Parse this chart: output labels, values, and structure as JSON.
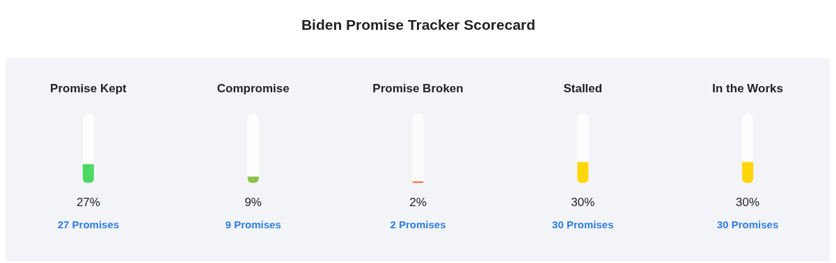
{
  "chart_data": {
    "type": "bar",
    "title": "Biden Promise Tracker Scorecard",
    "categories": [
      "Promise Kept",
      "Compromise",
      "Promise Broken",
      "Stalled",
      "In the Works"
    ],
    "values": [
      27,
      9,
      2,
      30,
      30
    ],
    "colors": [
      "#4cd964",
      "#8bc34a",
      "#e8642c",
      "#ffd60a",
      "#ffd60a"
    ],
    "value_labels": [
      "27%",
      "9%",
      "2%",
      "30%",
      "30%"
    ],
    "annotations": [
      "27 Promises",
      "9 Promises",
      "2 Promises",
      "30 Promises",
      "30 Promises"
    ],
    "ylim": [
      0,
      100
    ],
    "grid": false,
    "tick_labels": false
  }
}
